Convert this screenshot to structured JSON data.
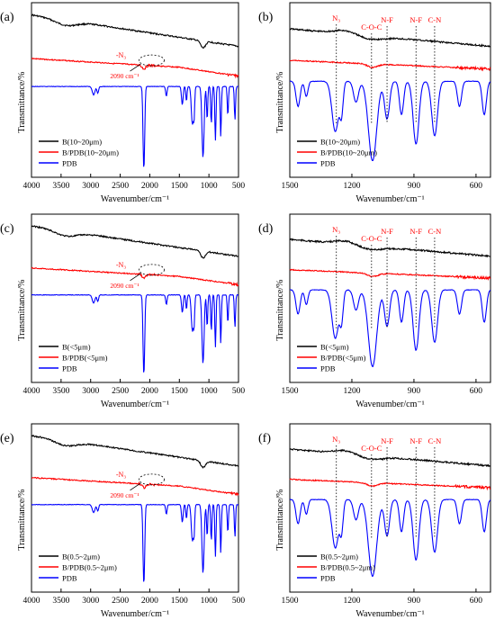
{
  "chart_data": [
    {
      "panel_label": "(a)",
      "type": "line",
      "xlabel": "Wavenumber/cm⁻¹",
      "ylabel": "Transmittance/%",
      "xlim": [
        4000,
        500
      ],
      "x_ticks": [
        4000,
        3500,
        3000,
        2500,
        2000,
        1500,
        1000,
        500
      ],
      "series": [
        {
          "name": "B(10~20μm)",
          "color": "#000000",
          "kind": "B"
        },
        {
          "name": "B/PDB(10~20μm)",
          "color": "#ff0000",
          "kind": "BPDB"
        },
        {
          "name": "PDB",
          "color": "#0000ff",
          "kind": "PDB"
        }
      ],
      "annotations": [
        {
          "label": "-N₃",
          "sub": "2090 cm⁻¹"
        }
      ]
    },
    {
      "panel_label": "(b)",
      "type": "line",
      "xlabel": "Wavenumber/cm⁻¹",
      "ylabel": "Transmittance/%",
      "xlim": [
        1500,
        530
      ],
      "x_ticks": [
        1500,
        1200,
        900,
        600
      ],
      "series": [
        {
          "name": "B(10~20μm)",
          "color": "#000000",
          "kind": "B"
        },
        {
          "name": "B/PDB(10~20μm)",
          "color": "#ff0000",
          "kind": "BPDB"
        },
        {
          "name": "PDB",
          "color": "#0000ff",
          "kind": "PDB"
        }
      ],
      "peak_labels": [
        {
          "label": "N₃",
          "x": 1275
        },
        {
          "label": "C-O-C",
          "x": 1105
        },
        {
          "label": "N-F",
          "x": 1030
        },
        {
          "label": "N-F",
          "x": 890
        },
        {
          "label": "C-N",
          "x": 800
        }
      ]
    },
    {
      "panel_label": "(c)",
      "type": "line",
      "xlabel": "Wavenumber/cm⁻¹",
      "ylabel": "Transmittance/%",
      "xlim": [
        4000,
        500
      ],
      "x_ticks": [
        4000,
        3500,
        3000,
        2500,
        2000,
        1500,
        1000,
        500
      ],
      "series": [
        {
          "name": "B(<5μm)",
          "color": "#000000",
          "kind": "B"
        },
        {
          "name": "B/PDB(<5μm)",
          "color": "#ff0000",
          "kind": "BPDB"
        },
        {
          "name": "PDB",
          "color": "#0000ff",
          "kind": "PDB"
        }
      ],
      "annotations": [
        {
          "label": "-N₃",
          "sub": "2090 cm⁻¹"
        }
      ]
    },
    {
      "panel_label": "(d)",
      "type": "line",
      "xlabel": "Wavenumber/cm⁻¹",
      "ylabel": "Transmittance/%",
      "xlim": [
        1500,
        530
      ],
      "x_ticks": [
        1500,
        1200,
        900,
        600
      ],
      "series": [
        {
          "name": "B(<5μm)",
          "color": "#000000",
          "kind": "B"
        },
        {
          "name": "B/PDB(<5μm)",
          "color": "#ff0000",
          "kind": "BPDB"
        },
        {
          "name": "PDB",
          "color": "#0000ff",
          "kind": "PDB"
        }
      ],
      "peak_labels": [
        {
          "label": "N₃",
          "x": 1275
        },
        {
          "label": "C-O-C",
          "x": 1105
        },
        {
          "label": "N-F",
          "x": 1030
        },
        {
          "label": "N-F",
          "x": 890
        },
        {
          "label": "C-N",
          "x": 800
        }
      ]
    },
    {
      "panel_label": "(e)",
      "type": "line",
      "xlabel": "Wavenumber/cm⁻¹",
      "ylabel": "Transmittance/%",
      "xlim": [
        4000,
        500
      ],
      "x_ticks": [
        4000,
        3500,
        3000,
        2500,
        2000,
        1500,
        1000,
        500
      ],
      "series": [
        {
          "name": "B(0.5~2μm)",
          "color": "#000000",
          "kind": "B"
        },
        {
          "name": "B/PDB(0.5~2μm)",
          "color": "#ff0000",
          "kind": "BPDB"
        },
        {
          "name": "PDB",
          "color": "#0000ff",
          "kind": "PDB"
        }
      ],
      "annotations": [
        {
          "label": "-N₃",
          "sub": "2090 cm⁻¹"
        }
      ]
    },
    {
      "panel_label": "(f)",
      "type": "line",
      "xlabel": "Wavenumber/cm⁻¹",
      "ylabel": "Transmittance/%",
      "xlim": [
        1500,
        530
      ],
      "x_ticks": [
        1500,
        1200,
        900,
        600
      ],
      "series": [
        {
          "name": "B(0.5~2μm)",
          "color": "#000000",
          "kind": "B"
        },
        {
          "name": "B/PDB(0.5~2μm)",
          "color": "#ff0000",
          "kind": "BPDB"
        },
        {
          "name": "PDB",
          "color": "#0000ff",
          "kind": "PDB"
        }
      ],
      "peak_labels": [
        {
          "label": "N₃",
          "x": 1275
        },
        {
          "label": "C-O-C",
          "x": 1105
        },
        {
          "label": "N-F",
          "x": 1030
        },
        {
          "label": "N-F",
          "x": 890
        },
        {
          "label": "C-N",
          "x": 800
        }
      ]
    }
  ]
}
